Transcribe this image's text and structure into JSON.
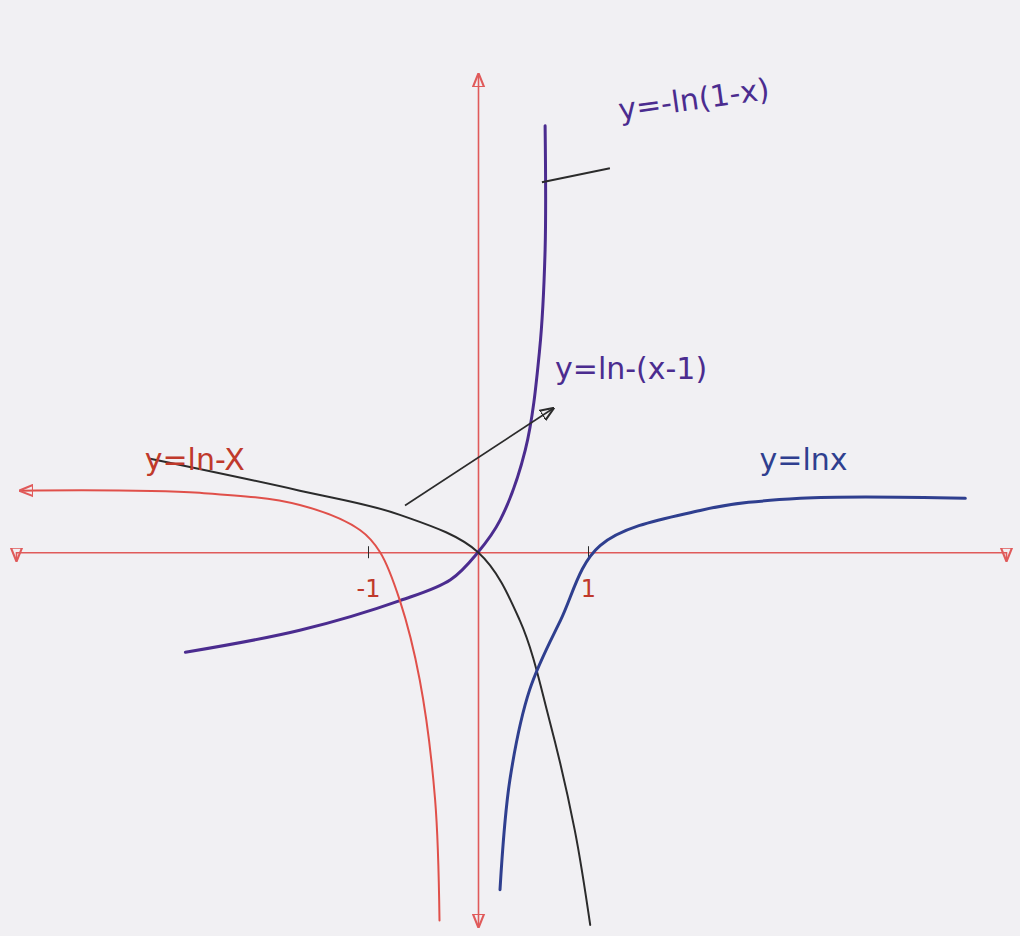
{
  "chart_data": {
    "type": "line",
    "xlim": [
      -4.2,
      4.8
    ],
    "ylim": [
      -3.4,
      4.35
    ],
    "xticks": [
      -1,
      1
    ],
    "yticks": [],
    "grid": false,
    "series": [
      {
        "color": "#4b2c8f",
        "x": [
          -2.66,
          -1.62,
          -0.71,
          -0.25,
          0,
          0.2,
          0.43,
          0.56,
          0.61,
          0.61
        ],
        "values": [
          -0.91,
          -0.71,
          -0.44,
          -0.25,
          0,
          0.29,
          0.93,
          1.84,
          2.75,
          3.88
        ]
      },
      {
        "color": "#2b2b2b",
        "x": [
          -2.98,
          -1.62,
          -0.71,
          0,
          0.38,
          0.65,
          0.88,
          1.02
        ],
        "values": [
          0.85,
          0.56,
          0.34,
          0,
          -0.62,
          -1.53,
          -2.53,
          -3.39
        ]
      },
      {
        "color": "#2f3f8f",
        "x": [
          0.2,
          0.29,
          0.47,
          0.75,
          1.11,
          2.02,
          2.93,
          4.43
        ],
        "values": [
          -3.07,
          -2.07,
          -1.25,
          -0.62,
          0.06,
          0.38,
          0.49,
          0.49
        ]
      },
      {
        "color": "#e0504a",
        "x": [
          -4.16,
          -2.53,
          -1.62,
          -1.07,
          -0.89,
          -0.71,
          -0.53,
          -0.39,
          -0.35
        ],
        "values": [
          0.56,
          0.54,
          0.43,
          0.2,
          0,
          -0.44,
          -1.16,
          -2.25,
          -3.35
        ]
      }
    ],
    "annotations": [
      {
        "text": "y=-ln(1-x)",
        "x": 1.29,
        "y": 3.93,
        "color": "#4b2c8f"
      },
      {
        "text": "y=ln-(x-1)",
        "x": 0.7,
        "y": 1.58,
        "color": "#4b2c8f"
      },
      {
        "text": "y=ln-X",
        "x": -3.03,
        "y": 0.75,
        "color": "#c0392b"
      },
      {
        "text": "y=lnx",
        "x": 2.56,
        "y": 0.75,
        "color": "#2f3f8f"
      }
    ]
  }
}
